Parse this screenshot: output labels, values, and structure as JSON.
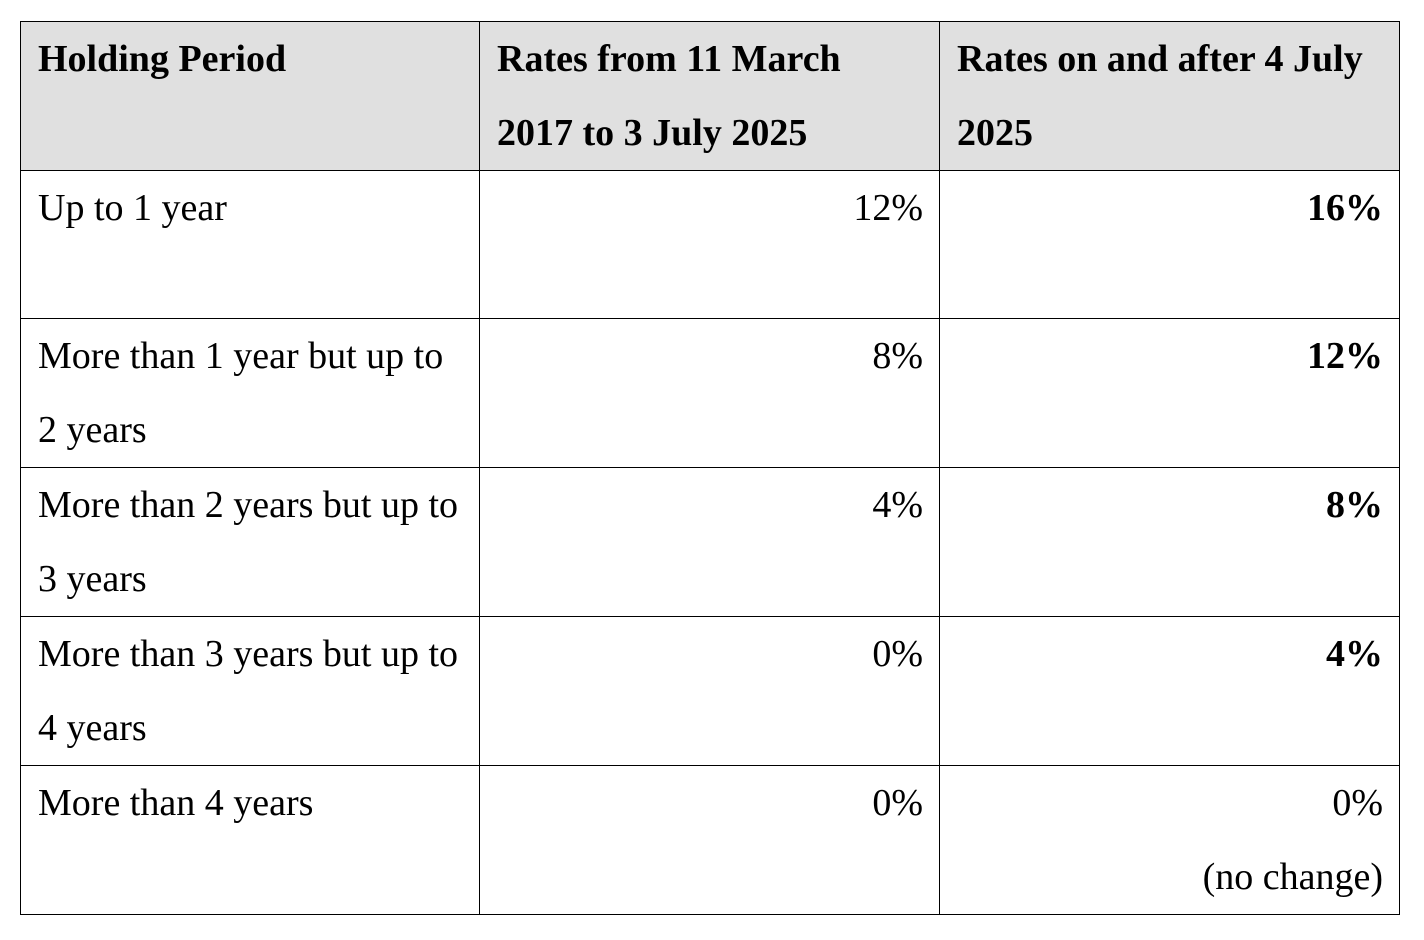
{
  "table": {
    "headers": [
      "Holding Period",
      "Rates from 11 March 2017 to 3 July 2025",
      "Rates on and after 4 July 2025"
    ],
    "rows": [
      {
        "period": "Up to 1 year",
        "old_rate": "12%",
        "new_rate": "16%",
        "new_note": ""
      },
      {
        "period": "More than 1 year but up to 2 years",
        "old_rate": "8%",
        "new_rate": "12%",
        "new_note": ""
      },
      {
        "period": "More than 2 years but up to 3 years",
        "old_rate": "4%",
        "new_rate": "8%",
        "new_note": ""
      },
      {
        "period": "More than 3 years but up to 4 years",
        "old_rate": "0%",
        "new_rate": "4%",
        "new_note": ""
      },
      {
        "period": "More than 4 years",
        "old_rate": "0%",
        "new_rate": "0%",
        "new_note": "(no change)"
      }
    ]
  },
  "colors": {
    "header_background": "#e0e0e0",
    "border": "#000000",
    "text": "#000000"
  }
}
